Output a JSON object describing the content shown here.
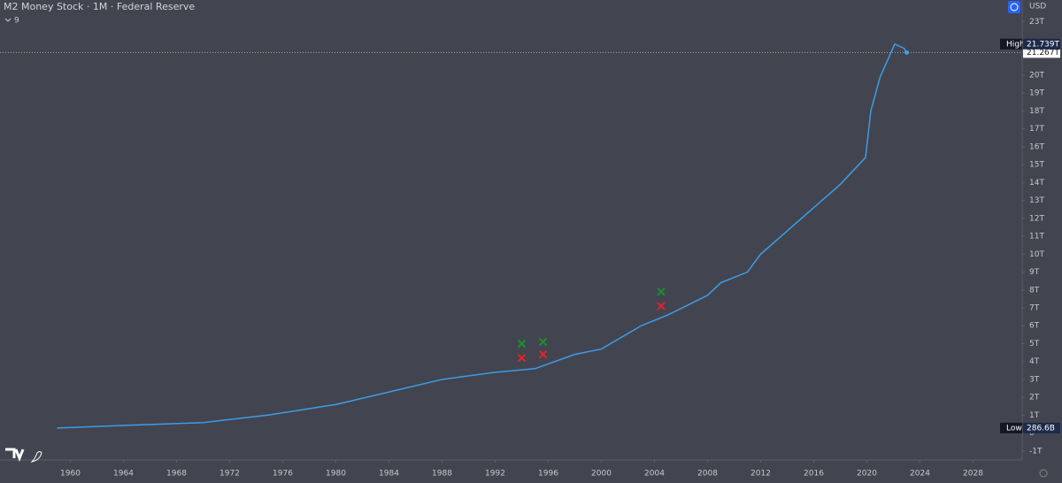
{
  "chart_data": {
    "type": "line",
    "title": "M2 Money Stock · 1M · Federal Reserve",
    "indicator_count": "9",
    "currency": "USD",
    "color": "#3d9be9",
    "grid": false,
    "x": [
      1959,
      1965,
      1970,
      1975,
      1980,
      1984,
      1988,
      1992,
      1995,
      1998,
      2000,
      2003,
      2005,
      2008,
      2009,
      2011,
      2012,
      2014,
      2016,
      2018,
      2019.9,
      2020.3,
      2021,
      2022.1,
      2022.8,
      2023
    ],
    "values": [
      0.2866,
      0.46,
      0.59,
      1.02,
      1.6,
      2.3,
      3.0,
      3.4,
      3.6,
      4.4,
      4.7,
      6.0,
      6.6,
      7.7,
      8.4,
      9.0,
      10.0,
      11.3,
      12.6,
      13.9,
      15.4,
      18.0,
      19.9,
      21.739,
      21.5,
      21.267
    ],
    "xlim": [
      1954.7,
      2031.7
    ],
    "ylim": [
      -1.5,
      24.2
    ],
    "xticks": [
      1960,
      1964,
      1968,
      1972,
      1976,
      1980,
      1984,
      1988,
      1992,
      1996,
      2000,
      2004,
      2008,
      2012,
      2016,
      2020,
      2024,
      2028
    ],
    "yticks": [
      {
        "value": -1,
        "label": "-1T"
      },
      {
        "value": 0,
        "label": "0"
      },
      {
        "value": 1,
        "label": "1T"
      },
      {
        "value": 2,
        "label": "2T"
      },
      {
        "value": 3,
        "label": "3T"
      },
      {
        "value": 4,
        "label": "4T"
      },
      {
        "value": 5,
        "label": "5T"
      },
      {
        "value": 6,
        "label": "6T"
      },
      {
        "value": 7,
        "label": "7T"
      },
      {
        "value": 8,
        "label": "8T"
      },
      {
        "value": 9,
        "label": "9T"
      },
      {
        "value": 10,
        "label": "10T"
      },
      {
        "value": 11,
        "label": "11T"
      },
      {
        "value": 12,
        "label": "12T"
      },
      {
        "value": 13,
        "label": "13T"
      },
      {
        "value": 14,
        "label": "14T"
      },
      {
        "value": 15,
        "label": "15T"
      },
      {
        "value": 16,
        "label": "16T"
      },
      {
        "value": 17,
        "label": "17T"
      },
      {
        "value": 18,
        "label": "18T"
      },
      {
        "value": 19,
        "label": "19T"
      },
      {
        "value": 20,
        "label": "20T"
      },
      {
        "value": 23,
        "label": "23T"
      }
    ],
    "high": {
      "label": "High",
      "value": 21.739,
      "value_label": "21.739T"
    },
    "last": {
      "value": 21.267,
      "value_label": "21.267T"
    },
    "low": {
      "label": "Low",
      "value": 0.2866,
      "value_label": "286.6B"
    },
    "markers": [
      {
        "x": 1994.0,
        "y": 4.2,
        "color": "#e0242f"
      },
      {
        "x": 1994.0,
        "y": 5.0,
        "color": "#1e8e2e"
      },
      {
        "x": 1995.6,
        "y": 4.4,
        "color": "#e0242f"
      },
      {
        "x": 1995.6,
        "y": 5.1,
        "color": "#1e8e2e"
      },
      {
        "x": 2004.5,
        "y": 7.1,
        "color": "#e0242f"
      },
      {
        "x": 2004.5,
        "y": 7.9,
        "color": "#1e8e2e"
      }
    ]
  }
}
